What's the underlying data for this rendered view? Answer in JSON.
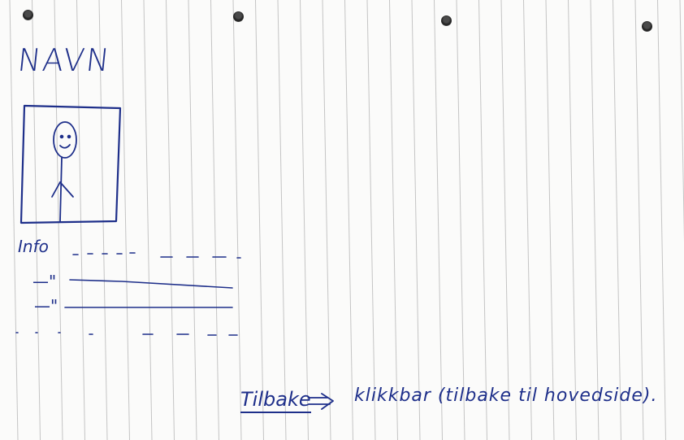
{
  "page": {
    "title": "NAVN",
    "info_label": "Info",
    "ditto_marks": [
      "—\"",
      "—\""
    ],
    "back_link": "Tilbake",
    "back_note": "klikkbar (tilbake til hovedside)."
  },
  "colors": {
    "ink": "#1e2f8a",
    "paper": "#fbfbfa",
    "ruling": "#c4c4c4"
  },
  "icons": {
    "portrait": "stick-figure-icon",
    "back_arrow": "arrow-right-icon"
  }
}
